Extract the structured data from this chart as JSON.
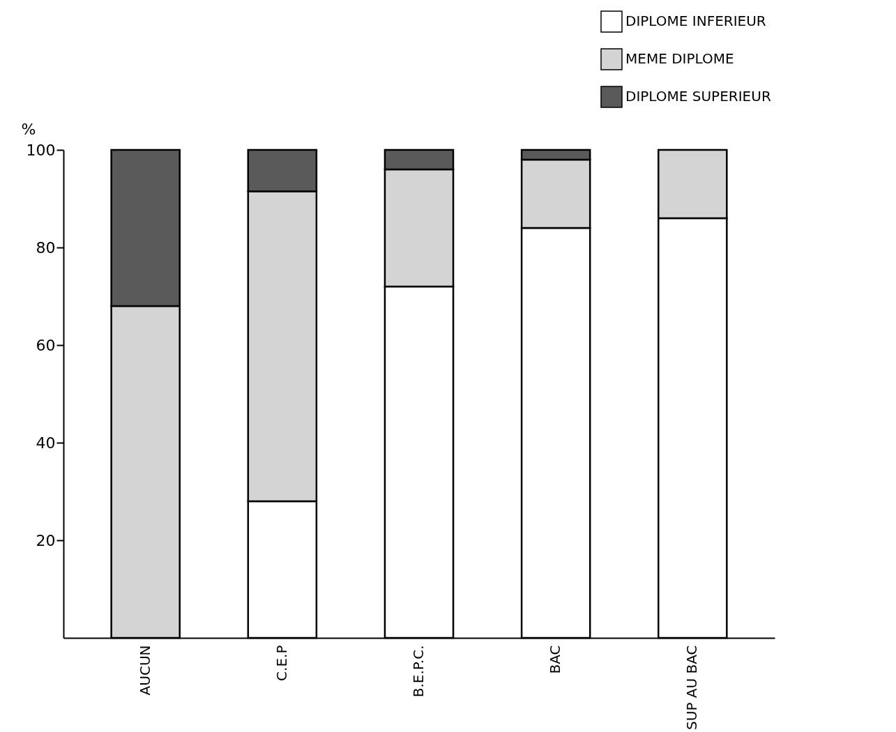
{
  "chart_data": {
    "type": "bar",
    "stacked": true,
    "ylabel": "%",
    "categories": [
      "AUCUN",
      "C.E.P",
      "B.E.P.C.",
      "BAC",
      "SUP AU BAC"
    ],
    "series": [
      {
        "name": "DIPLOME INFERIEUR",
        "color": "#ffffff",
        "values": [
          null,
          28,
          72,
          84,
          86
        ]
      },
      {
        "name": "MEME DIPLOME",
        "color": "#d4d4d4",
        "values": [
          68,
          63.5,
          24,
          14,
          14
        ]
      },
      {
        "name": "DIPLOME SUPERIEUR",
        "color": "#5a5a5a",
        "values": [
          32,
          8.5,
          4,
          2,
          null
        ]
      }
    ],
    "ylim": [
      0,
      100
    ],
    "yticks": [
      20,
      40,
      60,
      80,
      100
    ],
    "grid": false,
    "legend": "top right"
  }
}
